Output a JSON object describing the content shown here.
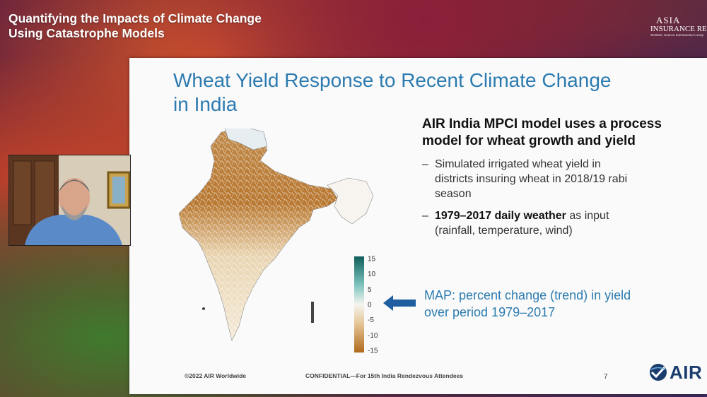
{
  "event": {
    "title_line1": "Quantifying the Impacts of Climate Change",
    "title_line2": "Using Catastrophe Models"
  },
  "logo": {
    "line1": "ASIA",
    "line2": "INSURANCE RE",
    "line3": "Member, Beacon International Group"
  },
  "slide": {
    "title_line1": "Wheat Yield Response to Recent Climate Change",
    "title_line2": "in India",
    "bullet_head_line1": "AIR India MPCI model uses a process",
    "bullet_head_line2": "model for wheat growth and yield",
    "sub1_line1": "Simulated irrigated wheat yield in",
    "sub1_line2": "districts insuring wheat in 2018/19 rabi",
    "sub1_line3": "season",
    "sub2_bold": "1979–2017 daily weather",
    "sub2_rest": " as input",
    "sub2_line2": "(rainfall, temperature, wind)",
    "dash": "–",
    "map_note_line1": "MAP: percent change (trend) in yield",
    "map_note_line2": "over period 1979–2017",
    "legend_ticks": [
      "15",
      "10",
      "5",
      "0",
      "-5",
      "-10",
      "-15"
    ],
    "footer_copyright": "©2022 AIR Worldwide",
    "footer_confidential": "CONFIDENTIAL—For 15th India Rendezvous Attendees",
    "page_number": "7",
    "air_logo_text": "AIR"
  },
  "colors": {
    "title_blue": "#2c7bb0",
    "arrow_blue": "#1f5fa0",
    "legend_top": "#0e5e5a",
    "legend_bottom": "#b06a1c"
  }
}
